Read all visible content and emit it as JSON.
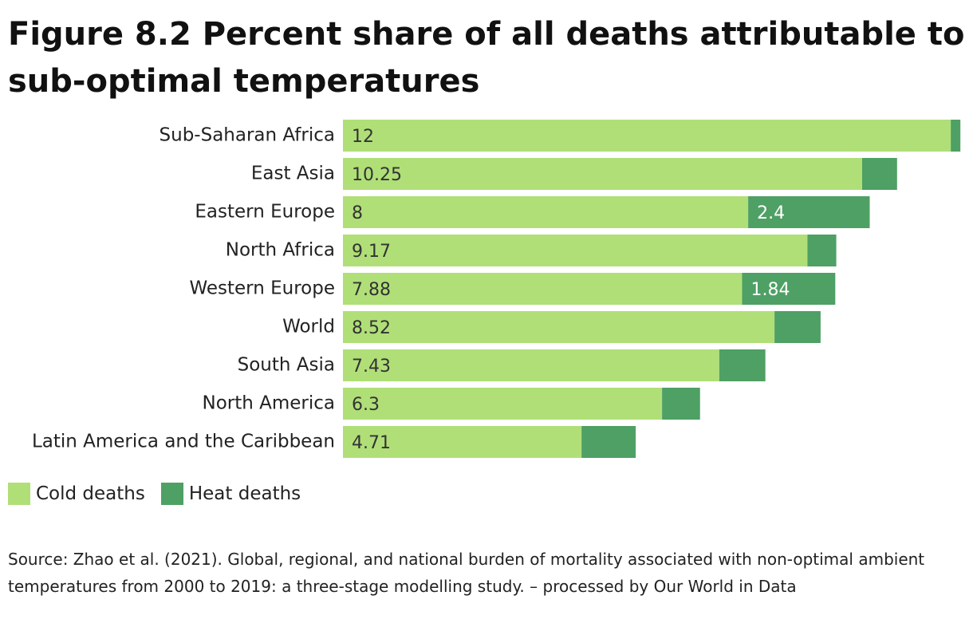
{
  "title": "Figure 8.2 Percent share of all deaths attributable to sub-optimal temperatures",
  "legend": {
    "cold_label": "Cold deaths",
    "heat_label": "Heat deaths"
  },
  "colors": {
    "cold": "#b0df78",
    "heat": "#4ea064",
    "cold_text": "#333333",
    "heat_text": "#ffffff"
  },
  "source": "Source: Zhao et al. (2021). Global, regional, and national burden of mortality associated with non-optimal ambient temperatures from 2000 to 2019: a three-stage modelling study. – processed by Our World in Data",
  "chart_data": {
    "type": "bar",
    "orientation": "horizontal",
    "stacked": true,
    "title": "Figure 8.2 Percent share of all deaths attributable to sub-optimal temperatures",
    "xlabel": "",
    "ylabel": "",
    "xlim": [
      0,
      12.25
    ],
    "grid": false,
    "legend_position": "bottom-left",
    "categories": [
      "Sub-Saharan Africa",
      "East Asia",
      "Eastern Europe",
      "North Africa",
      "Western Europe",
      "World",
      "South Asia",
      "North America",
      "Latin America and the Caribbean"
    ],
    "series": [
      {
        "name": "Cold deaths",
        "values": [
          12,
          10.25,
          8,
          9.17,
          7.88,
          8.52,
          7.43,
          6.3,
          4.71
        ],
        "labels": [
          "12",
          "10.25",
          "8",
          "9.17",
          "7.88",
          "8.52",
          "7.43",
          "6.3",
          "4.71"
        ]
      },
      {
        "name": "Heat deaths",
        "values": [
          0.19,
          0.69,
          2.4,
          0.57,
          1.84,
          0.91,
          0.91,
          0.75,
          1.07
        ],
        "labels": [
          "",
          "",
          "2.4",
          "",
          "1.84",
          "",
          "",
          "",
          ""
        ]
      }
    ]
  }
}
